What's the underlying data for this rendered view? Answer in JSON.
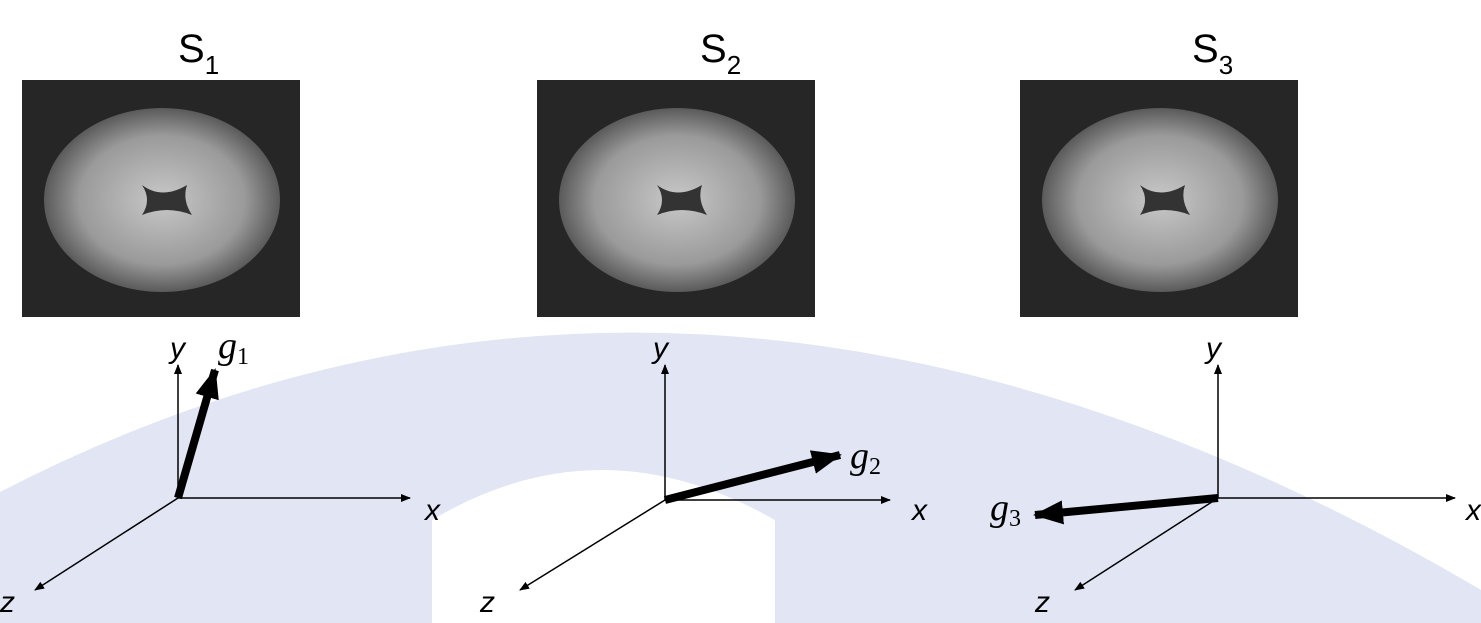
{
  "panels": [
    {
      "title": {
        "text": "S",
        "sub": "1"
      },
      "axes": {
        "y": "y",
        "x": "x",
        "z": "z"
      },
      "gradient": {
        "text": "g",
        "sub": "1"
      }
    },
    {
      "title": {
        "text": "S",
        "sub": "2"
      },
      "axes": {
        "y": "y",
        "x": "x",
        "z": "z"
      },
      "gradient": {
        "text": "g",
        "sub": "2"
      }
    },
    {
      "title": {
        "text": "S",
        "sub": "3"
      },
      "axes": {
        "y": "y",
        "x": "x",
        "z": "z"
      },
      "gradient": {
        "text": "g",
        "sub": "3"
      }
    }
  ]
}
